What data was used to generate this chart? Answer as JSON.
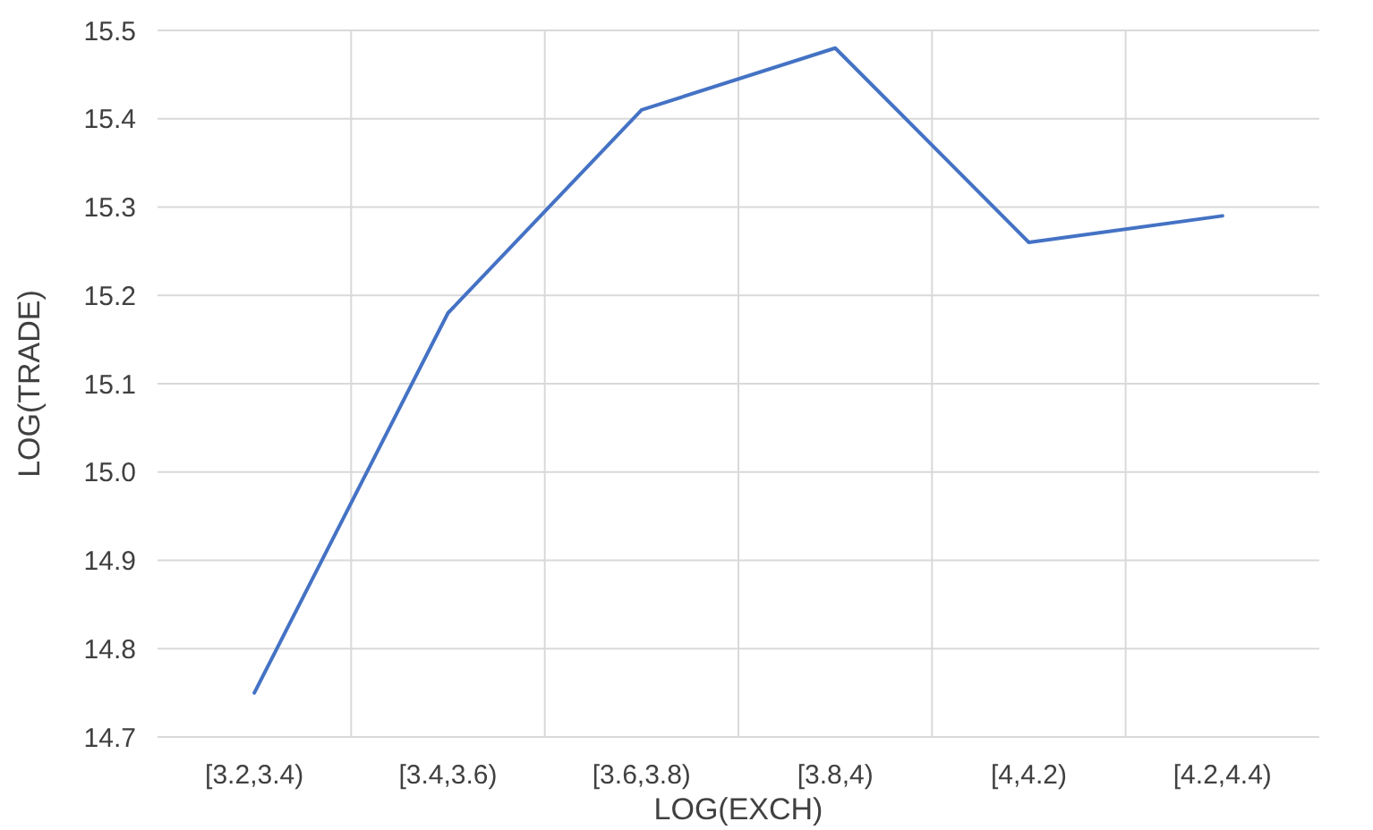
{
  "chart_data": {
    "type": "line",
    "xlabel": "LOG(EXCH)",
    "ylabel": "LOG(TRADE)",
    "categories": [
      "[3.2,3.4)",
      "[3.4,3.6)",
      "[3.6,3.8)",
      "[3.8,4)",
      "[4,4.2)",
      "[4.2,4.4)"
    ],
    "series": [
      {
        "color": "#4472c4",
        "values": [
          14.75,
          15.18,
          15.41,
          15.48,
          15.26,
          15.29
        ]
      }
    ],
    "ylim": [
      14.7,
      15.5
    ],
    "yticks": [
      {
        "value": 14.7,
        "label": "14.7"
      },
      {
        "value": 14.8,
        "label": "14.8"
      },
      {
        "value": 14.9,
        "label": "14.9"
      },
      {
        "value": 15.0,
        "label": "15.0"
      },
      {
        "value": 15.1,
        "label": "15.1"
      },
      {
        "value": 15.2,
        "label": "15.2"
      },
      {
        "value": 15.3,
        "label": "15.3"
      },
      {
        "value": 15.4,
        "label": "15.4"
      },
      {
        "value": 15.5,
        "label": "15.5"
      }
    ],
    "grid": true,
    "marker": "none",
    "line_style": "solid"
  }
}
